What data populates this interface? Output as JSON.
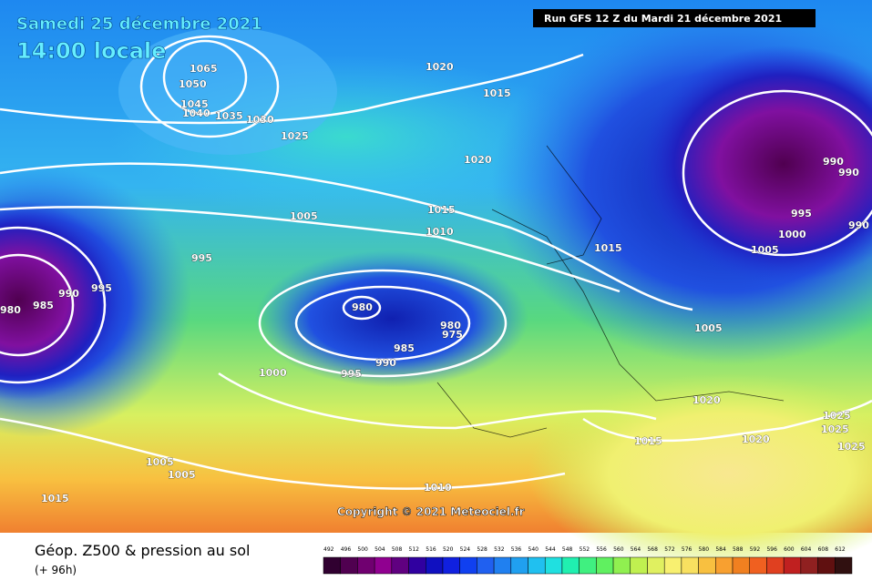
{
  "header": {
    "date": "Samedi 25 décembre 2021",
    "time": "14:00 locale",
    "run": "Run GFS 12 Z du Mardi 21 décembre 2021"
  },
  "isobar_labels": [
    "1065",
    "1050",
    "1045",
    "1040",
    "1035",
    "1030",
    "1025",
    "1020",
    "1015",
    "1020",
    "1015",
    "1010",
    "1005",
    "995",
    "995",
    "990",
    "985",
    "980",
    "980",
    "980",
    "975",
    "985",
    "990",
    "995",
    "1000",
    "1015",
    "995",
    "1000",
    "1005",
    "990",
    "990",
    "990",
    "1005",
    "1020",
    "1015",
    "1020",
    "1025",
    "1025",
    "1025",
    "1005",
    "1005",
    "1015",
    "1010"
  ],
  "copyright": "Copyright © 2021 Meteociel.fr",
  "legend": {
    "title": "Géop. Z500 & pression au sol",
    "lead": "(+ 96h)",
    "scale": [
      492,
      496,
      500,
      504,
      508,
      512,
      516,
      520,
      524,
      528,
      532,
      536,
      540,
      544,
      548,
      552,
      556,
      560,
      564,
      568,
      572,
      576,
      580,
      584,
      588,
      592,
      596,
      600,
      604,
      608,
      612
    ]
  }
}
